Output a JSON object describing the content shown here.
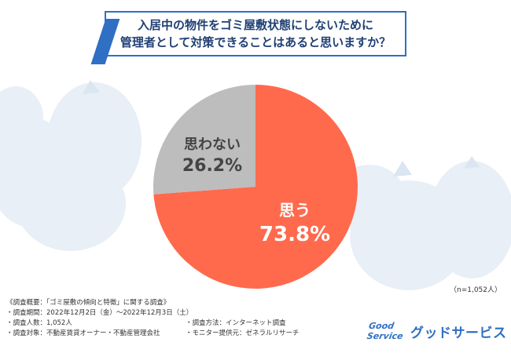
{
  "title": {
    "line1": "入居中の物件をゴミ屋敷状態にしないために",
    "line2": "管理者として対策できることはあると思いますか？"
  },
  "chart_data": {
    "type": "pie",
    "slices": [
      {
        "label": "思う",
        "value": 73.8,
        "display": "73.8%",
        "color": "#ff6a4d"
      },
      {
        "label": "思わない",
        "value": 26.2,
        "display": "26.2%",
        "color": "#bdbdbd"
      }
    ],
    "sample": "（n=1,052人）"
  },
  "footer": {
    "heading": "《調査概要：「ゴミ屋敷の傾向と特徴」に関する調査》",
    "period": "・調査期間：2022年12月2日（金）～2022年12月3日（土）",
    "count": "・調査人数：1,052人",
    "method": "・調査方法：インターネット調査",
    "target": "・調査対象：不動産賃貸オーナー・不動産管理会社",
    "provider": "・モニター提供元：ゼネラルリサーチ"
  },
  "logo": {
    "badge_line1": "Good",
    "badge_line2": "Service",
    "text": "グッドサービス",
    "color": "#2f6fc4"
  }
}
